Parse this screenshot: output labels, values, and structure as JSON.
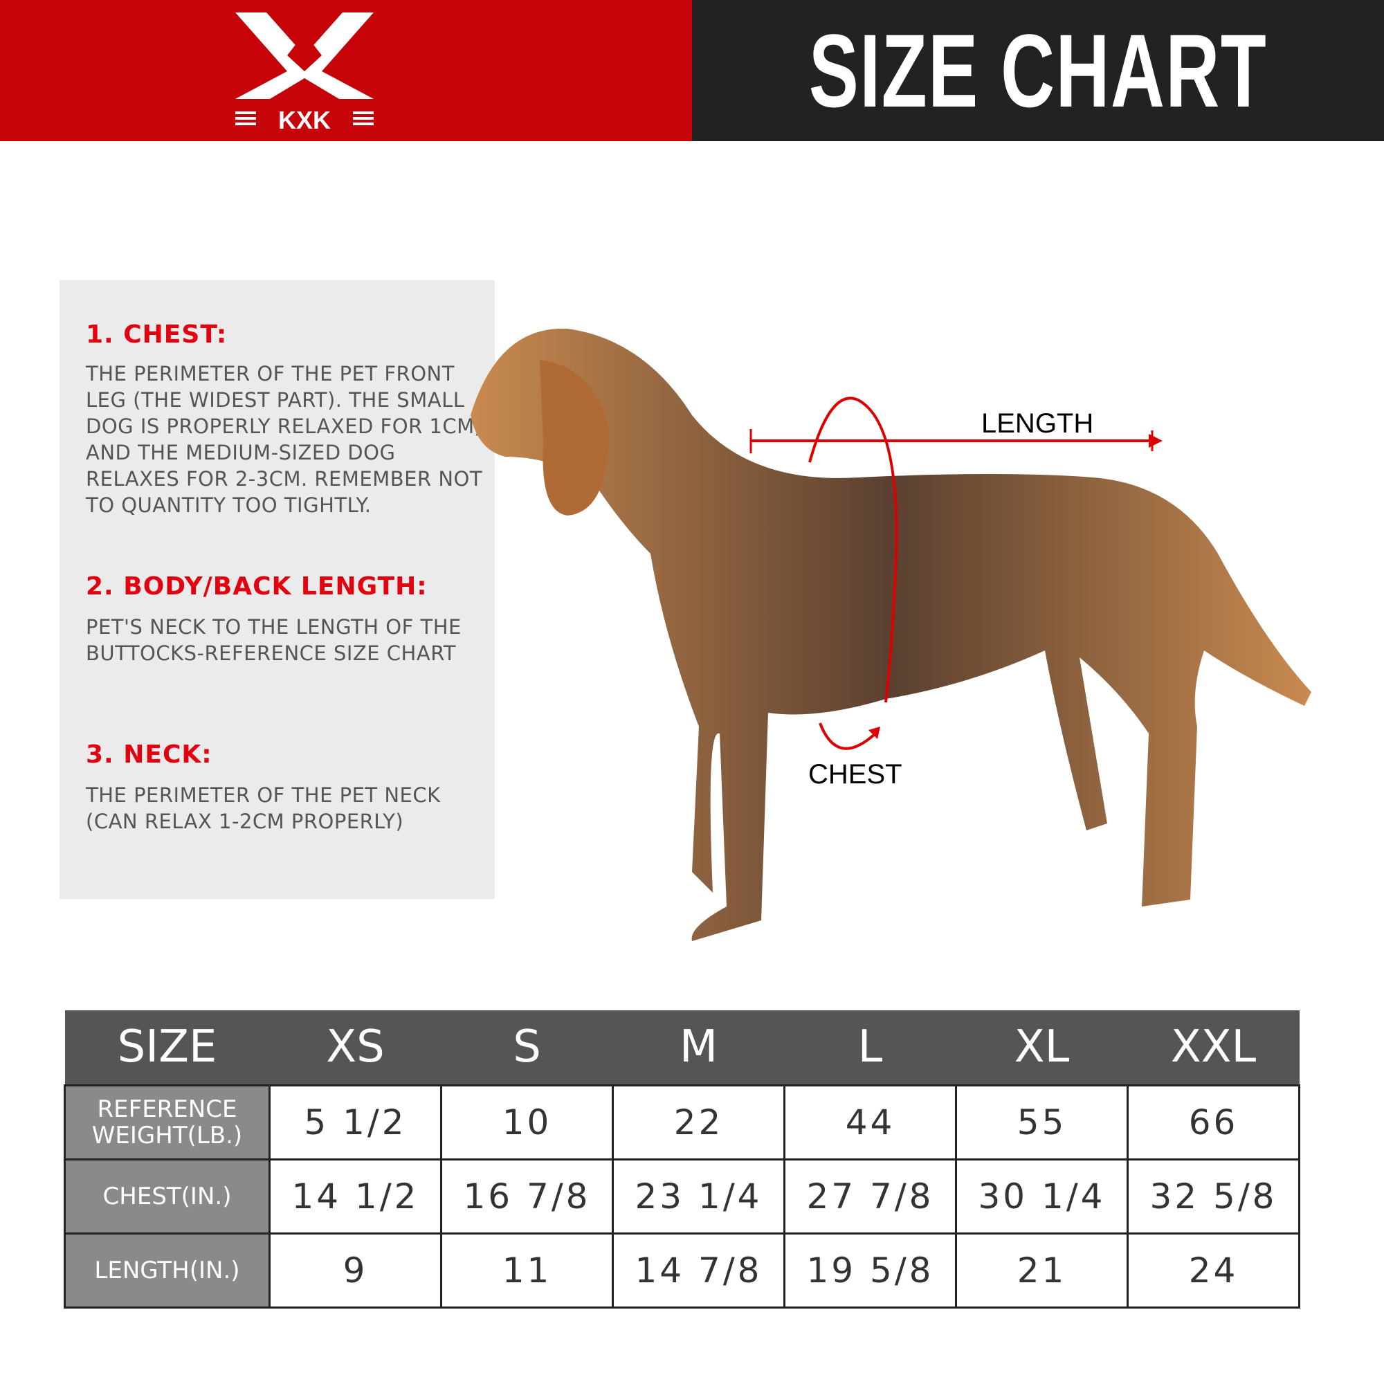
{
  "header": {
    "brand": "KXK",
    "title": "SIZE CHART",
    "brand_color": "#c50308",
    "dark_color": "#222222"
  },
  "guide": [
    {
      "heading": "1. CHEST:",
      "text": "THE PERIMETER OF THE PET FRONT LEG (THE WIDEST PART). THE SMALL DOG IS PROPERLY RELAXED FOR 1CM, AND THE MEDIUM-SIZED DOG RELAXES FOR 2-3CM. REMEMBER NOT TO QUANTITY TOO TIGHTLY."
    },
    {
      "heading": "2. BODY/BACK LENGTH:",
      "text": "PET'S NECK TO THE LENGTH OF THE BUTTOCKS-REFERENCE SIZE CHART"
    },
    {
      "heading": "3. NECK:",
      "text": "THE PERIMETER OF THE PET NECK (CAN RELAX 1-2CM PROPERLY)"
    }
  ],
  "diagram": {
    "length_label": "LENGTH",
    "chest_label": "CHEST"
  },
  "table": {
    "headers": [
      "SIZE",
      "XS",
      "S",
      "M",
      "L",
      "XL",
      "XXL"
    ],
    "rows": [
      {
        "label": "REFERENCE WEIGHT(LB.)",
        "values": [
          "5 1/2",
          "10",
          "22",
          "44",
          "55",
          "66"
        ]
      },
      {
        "label": "CHEST(IN.)",
        "values": [
          "14 1/2",
          "16 7/8",
          "23 1/4",
          "27 7/8",
          "30 1/4",
          "32 5/8"
        ]
      },
      {
        "label": "LENGTH(IN.)",
        "values": [
          "9",
          "11",
          "14 7/8",
          "19 5/8",
          "21",
          "24"
        ]
      }
    ]
  }
}
